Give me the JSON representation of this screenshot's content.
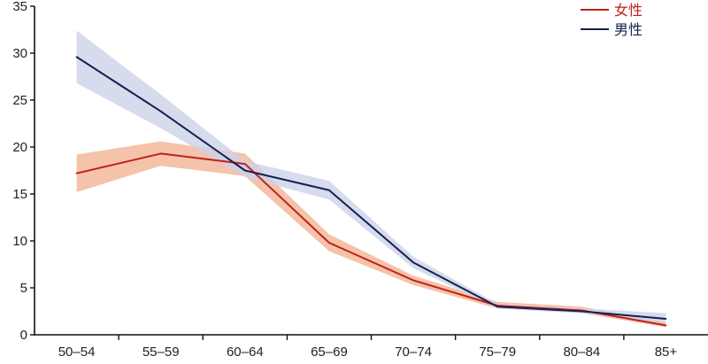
{
  "chart_data": {
    "type": "line",
    "title": "",
    "xlabel": "",
    "ylabel": "",
    "categories": [
      "50–54",
      "55–59",
      "60–64",
      "65–69",
      "70–74",
      "75–79",
      "80–84",
      "85+"
    ],
    "ylim": [
      0,
      35
    ],
    "yticks": [
      0,
      5,
      10,
      15,
      20,
      25,
      30,
      35
    ],
    "y_tick_labels": [
      "0",
      "5",
      "10",
      "15",
      "20",
      "25",
      "30",
      "35"
    ],
    "legend_position": "top-right",
    "series": [
      {
        "name": "女性",
        "color": "#c0201a",
        "band_color": "#f2b89a",
        "values": [
          17.2,
          19.3,
          18.2,
          9.8,
          5.8,
          3.1,
          2.6,
          1.0
        ],
        "lower": [
          15.2,
          18.0,
          16.9,
          8.9,
          5.3,
          2.8,
          2.3,
          0.8
        ],
        "upper": [
          19.2,
          20.6,
          19.3,
          10.7,
          6.3,
          3.5,
          3.0,
          1.3
        ]
      },
      {
        "name": "男性",
        "color": "#16204f",
        "band_color": "#cdd2ea",
        "values": [
          29.6,
          23.8,
          17.5,
          15.4,
          7.7,
          3.0,
          2.5,
          1.7
        ],
        "lower": [
          26.8,
          22.0,
          16.8,
          14.4,
          7.1,
          2.8,
          2.3,
          1.3
        ],
        "upper": [
          32.4,
          25.6,
          18.5,
          16.4,
          8.3,
          3.3,
          2.8,
          2.3
        ]
      }
    ]
  }
}
